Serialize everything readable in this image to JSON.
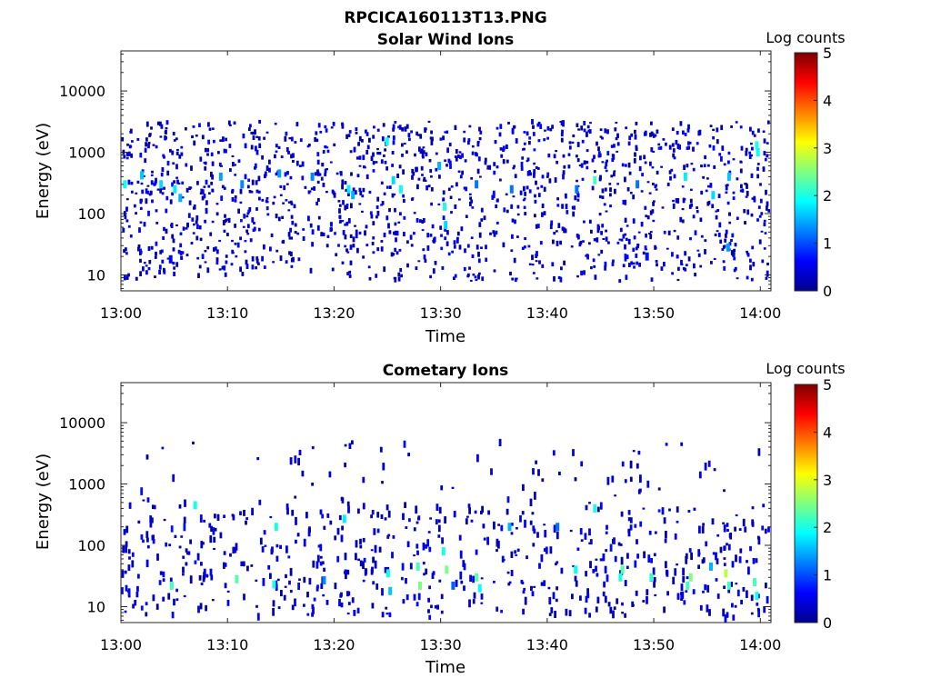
{
  "figure": {
    "file_title": "RPCICA160113T13.PNG"
  },
  "colormap": {
    "stops": [
      "#00008f",
      "#0000ff",
      "#007fff",
      "#00ffff",
      "#7fff7f",
      "#ffff00",
      "#ff7f00",
      "#ff0000",
      "#7f0000"
    ]
  },
  "chart_data": [
    {
      "type": "heatmap",
      "title": "Solar Wind Ions",
      "xlabel": "Time",
      "ylabel": "Energy (eV)",
      "x_ticks": [
        "13:00",
        "13:10",
        "13:20",
        "13:30",
        "13:40",
        "13:50",
        "14:00"
      ],
      "xlim_minutes": [
        0,
        61
      ],
      "y_scale": "log",
      "y_ticks": [
        "10",
        "100",
        "1000",
        "10000"
      ],
      "ylim": [
        5.5,
        45000
      ],
      "colorbar": {
        "label": "Log counts",
        "range": [
          0,
          5
        ],
        "ticks": [
          "0",
          "1",
          "2",
          "3",
          "4",
          "5"
        ]
      },
      "patches": [
        {
          "t": 0.2,
          "e": 300,
          "c": 1.9
        },
        {
          "t": 1.8,
          "e": 420,
          "c": 1.6
        },
        {
          "t": 3.6,
          "e": 300,
          "c": 1.7
        },
        {
          "t": 4.9,
          "e": 250,
          "c": 1.8
        },
        {
          "t": 5.4,
          "e": 180,
          "c": 1.5
        },
        {
          "t": 4.5,
          "e": 18,
          "c": 0.6
        },
        {
          "t": 9.2,
          "e": 400,
          "c": 1.4
        },
        {
          "t": 11.2,
          "e": 300,
          "c": 1.3
        },
        {
          "t": 14.7,
          "e": 450,
          "c": 1.4
        },
        {
          "t": 17.8,
          "e": 400,
          "c": 1.3
        },
        {
          "t": 21.2,
          "e": 250,
          "c": 1.8
        },
        {
          "t": 21.6,
          "e": 200,
          "c": 1.5
        },
        {
          "t": 24.8,
          "e": 1500,
          "c": 1.9
        },
        {
          "t": 25.4,
          "e": 350,
          "c": 1.7
        },
        {
          "t": 26.1,
          "e": 250,
          "c": 1.9
        },
        {
          "t": 29.7,
          "e": 600,
          "c": 1.5
        },
        {
          "t": 30.2,
          "e": 130,
          "c": 2.0
        },
        {
          "t": 30.3,
          "e": 65,
          "c": 1.7
        },
        {
          "t": 33.2,
          "e": 300,
          "c": 1.2
        },
        {
          "t": 36.5,
          "e": 250,
          "c": 1.2
        },
        {
          "t": 42.6,
          "e": 250,
          "c": 1.2
        },
        {
          "t": 44.3,
          "e": 350,
          "c": 2.2
        },
        {
          "t": 48.3,
          "e": 300,
          "c": 1.2
        },
        {
          "t": 49.2,
          "e": 20,
          "c": 0.7
        },
        {
          "t": 52.8,
          "e": 400,
          "c": 1.8
        },
        {
          "t": 55.4,
          "e": 200,
          "c": 1.7
        },
        {
          "t": 56.9,
          "e": 400,
          "c": 1.6
        },
        {
          "t": 56.8,
          "e": 28,
          "c": 1.4
        },
        {
          "t": 59.5,
          "e": 1300,
          "c": 2.0
        },
        {
          "t": 59.6,
          "e": 1000,
          "c": 1.9
        }
      ]
    },
    {
      "type": "heatmap",
      "title": "Cometary Ions",
      "xlabel": "Time",
      "ylabel": "Energy (eV)",
      "x_ticks": [
        "13:00",
        "13:10",
        "13:20",
        "13:30",
        "13:40",
        "13:50",
        "14:00"
      ],
      "xlim_minutes": [
        0,
        61
      ],
      "y_scale": "log",
      "y_ticks": [
        "10",
        "100",
        "1000",
        "10000"
      ],
      "ylim": [
        5.5,
        45000
      ],
      "colorbar": {
        "label": "Log counts",
        "range": [
          0,
          5
        ],
        "ticks": [
          "0",
          "1",
          "2",
          "3",
          "4",
          "5"
        ]
      },
      "patches": [
        {
          "t": 4.6,
          "e": 22,
          "c": 2.2
        },
        {
          "t": 6.8,
          "e": 450,
          "c": 2.0
        },
        {
          "t": 10.7,
          "e": 28,
          "c": 2.3
        },
        {
          "t": 14.2,
          "e": 23,
          "c": 2.0
        },
        {
          "t": 14.4,
          "e": 200,
          "c": 2.0
        },
        {
          "t": 18.9,
          "e": 27,
          "c": 1.3
        },
        {
          "t": 20.8,
          "e": 270,
          "c": 1.8
        },
        {
          "t": 24.9,
          "e": 35,
          "c": 1.9
        },
        {
          "t": 25.1,
          "e": 18,
          "c": 1.6
        },
        {
          "t": 27.7,
          "e": 45,
          "c": 2.2
        },
        {
          "t": 27.9,
          "e": 22,
          "c": 2.5
        },
        {
          "t": 30.1,
          "e": 80,
          "c": 2.0
        },
        {
          "t": 30.4,
          "e": 40,
          "c": 2.5
        },
        {
          "t": 31.0,
          "e": 22,
          "c": 1.1
        },
        {
          "t": 33.2,
          "e": 30,
          "c": 2.3
        },
        {
          "t": 33.5,
          "e": 20,
          "c": 1.9
        },
        {
          "t": 36.3,
          "e": 200,
          "c": 1.5
        },
        {
          "t": 40.8,
          "e": 200,
          "c": 1.2
        },
        {
          "t": 42.5,
          "e": 40,
          "c": 1.9
        },
        {
          "t": 44.3,
          "e": 400,
          "c": 2.0
        },
        {
          "t": 46.7,
          "e": 30,
          "c": 2.0
        },
        {
          "t": 46.9,
          "e": 40,
          "c": 2.3
        },
        {
          "t": 49.6,
          "e": 30,
          "c": 2.1
        },
        {
          "t": 53.0,
          "e": 22,
          "c": 2.2
        },
        {
          "t": 53.3,
          "e": 30,
          "c": 2.5
        },
        {
          "t": 55.2,
          "e": 45,
          "c": 1.5
        },
        {
          "t": 56.6,
          "e": 35,
          "c": 2.8
        },
        {
          "t": 56.9,
          "e": 22,
          "c": 2.2
        },
        {
          "t": 59.3,
          "e": 25,
          "c": 2.2
        },
        {
          "t": 59.5,
          "e": 15,
          "c": 2.0
        }
      ]
    }
  ]
}
